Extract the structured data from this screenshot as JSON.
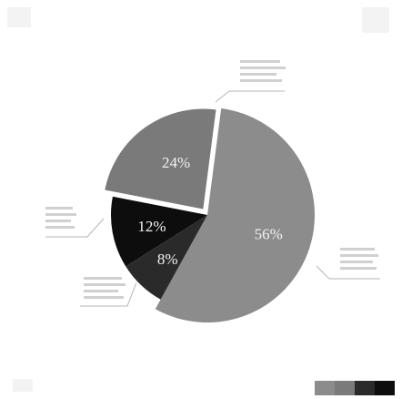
{
  "chart_data": {
    "type": "pie",
    "values": [
      56,
      24,
      12,
      8
    ],
    "labels": [
      "56%",
      "24%",
      "12%",
      "8%"
    ],
    "colors": [
      "#8c8c8c",
      "#7a7a7a",
      "#0d0d0d",
      "#2a2a2a"
    ],
    "legend": "bottom-right",
    "legend_colors": [
      "#8c8c8c",
      "#7a7a7a",
      "#2a2a2a",
      "#0d0d0d"
    ]
  }
}
